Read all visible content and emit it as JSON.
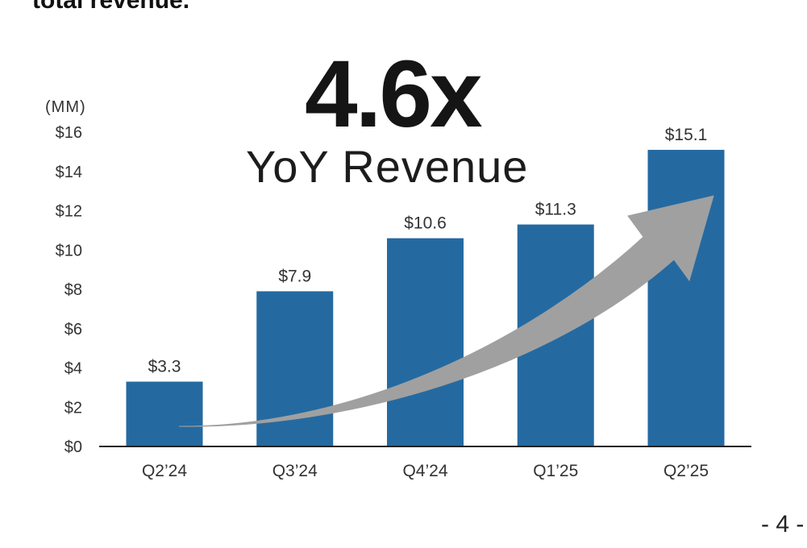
{
  "header": {
    "top_text": "total revenue."
  },
  "highlight": {
    "stat": "4.6x",
    "label": "YoY Revenue"
  },
  "page_number": "- 4 -",
  "colors": {
    "bar": "#246aa1",
    "arrow": "#a0a0a0",
    "axis": "#222222"
  },
  "chart_data": {
    "type": "bar",
    "title": "",
    "xlabel": "",
    "ylabel": "",
    "unit_label": "(MM)",
    "categories": [
      "Q2’24",
      "Q3’24",
      "Q4’24",
      "Q1’25",
      "Q2’25"
    ],
    "values": [
      3.3,
      7.9,
      10.6,
      11.3,
      15.1
    ],
    "value_labels": [
      "$3.3",
      "$7.9",
      "$10.6",
      "$11.3",
      "$15.1"
    ],
    "ylim": [
      0,
      16
    ],
    "yticks": [
      0,
      2,
      4,
      6,
      8,
      10,
      12,
      14,
      16
    ],
    "ytick_labels": [
      "$0",
      "$2",
      "$4",
      "$6",
      "$8",
      "$10",
      "$12",
      "$14",
      "$16"
    ],
    "grid": false,
    "legend": "none",
    "annotation": "upward trend arrow"
  }
}
